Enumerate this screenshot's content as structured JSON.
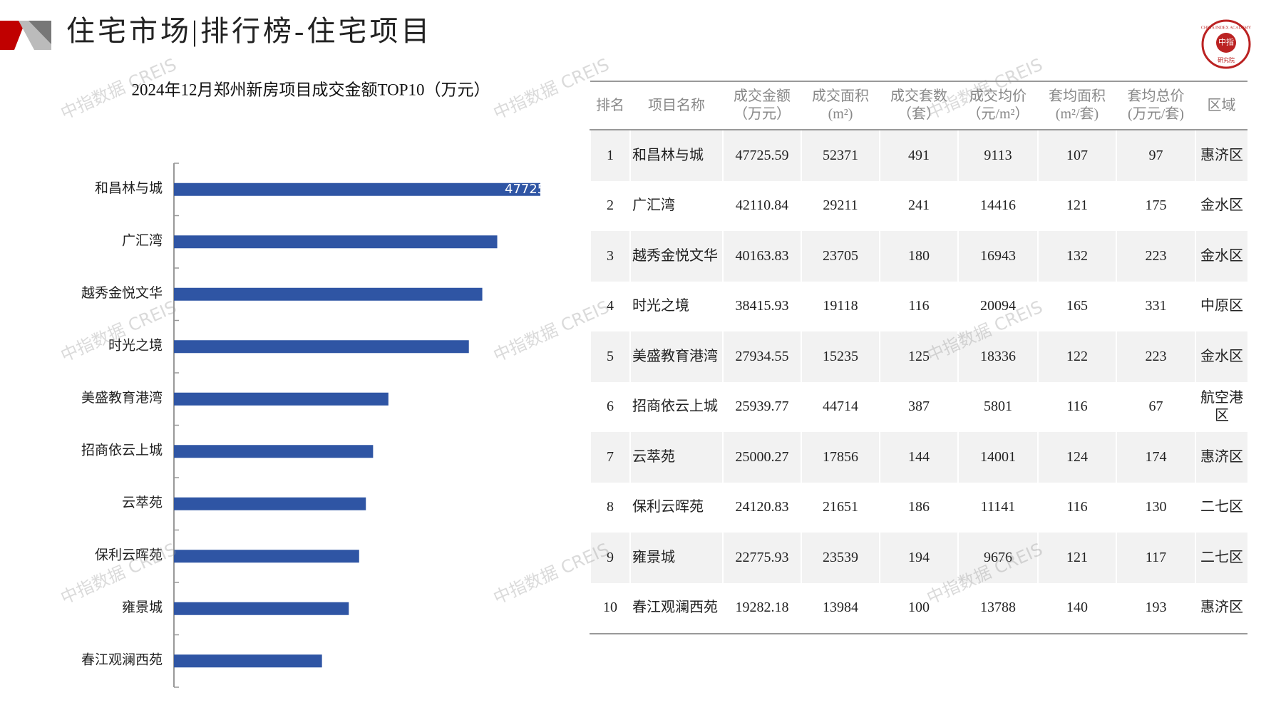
{
  "header": {
    "title": "住宅市场|排行榜-住宅项目"
  },
  "logo": {
    "text": "中指",
    "ring": "CHINA INDEX ACADEMY",
    "sub": "研究院"
  },
  "watermark": "中指数据 CREIS",
  "chart_data": {
    "type": "bar",
    "orientation": "horizontal",
    "title": "2024年12月郑州新房项目成交金额TOP10（万元）",
    "categories": [
      "和昌林与城",
      "广汇湾",
      "越秀金悦文华",
      "时光之境",
      "美盛教育港湾",
      "招商依云上城",
      "云萃苑",
      "保利云晖苑",
      "雍景城",
      "春江观澜西苑"
    ],
    "values": [
      47725.59,
      42110.84,
      40163.83,
      38415.93,
      27934.55,
      25939.77,
      25000.27,
      24120.83,
      22775.93,
      19282.18
    ],
    "color": "#2f55a4",
    "xlim": [
      0,
      47725.59
    ]
  },
  "table": {
    "columns": [
      [
        "排名"
      ],
      [
        "项目名称"
      ],
      [
        "成交金额",
        "（万元）"
      ],
      [
        "成交面积",
        "(m²)"
      ],
      [
        "成交套数",
        "（套）"
      ],
      [
        "成交均价",
        "（元/m²）"
      ],
      [
        "套均面积",
        "(m²/套)"
      ],
      [
        "套均总价",
        "(万元/套)"
      ],
      [
        "区域"
      ]
    ],
    "rows": [
      [
        1,
        "和昌林与城",
        47725.59,
        52371,
        491,
        9113,
        107,
        97,
        "惠济区"
      ],
      [
        2,
        "广汇湾",
        42110.84,
        29211,
        241,
        14416,
        121,
        175,
        "金水区"
      ],
      [
        3,
        "越秀金悦文华",
        40163.83,
        23705,
        180,
        16943,
        132,
        223,
        "金水区"
      ],
      [
        4,
        "时光之境",
        38415.93,
        19118,
        116,
        20094,
        165,
        331,
        "中原区"
      ],
      [
        5,
        "美盛教育港湾",
        27934.55,
        15235,
        125,
        18336,
        122,
        223,
        "金水区"
      ],
      [
        6,
        "招商依云上城",
        25939.77,
        44714,
        387,
        5801,
        116,
        67,
        "航空港区"
      ],
      [
        7,
        "云萃苑",
        25000.27,
        17856,
        144,
        14001,
        124,
        174,
        "惠济区"
      ],
      [
        8,
        "保利云晖苑",
        24120.83,
        21651,
        186,
        11141,
        116,
        130,
        "二七区"
      ],
      [
        9,
        "雍景城",
        22775.93,
        23539,
        194,
        9676,
        121,
        117,
        "二七区"
      ],
      [
        10,
        "春江观澜西苑",
        19282.18,
        13984,
        100,
        13788,
        140,
        193,
        "惠济区"
      ]
    ]
  }
}
